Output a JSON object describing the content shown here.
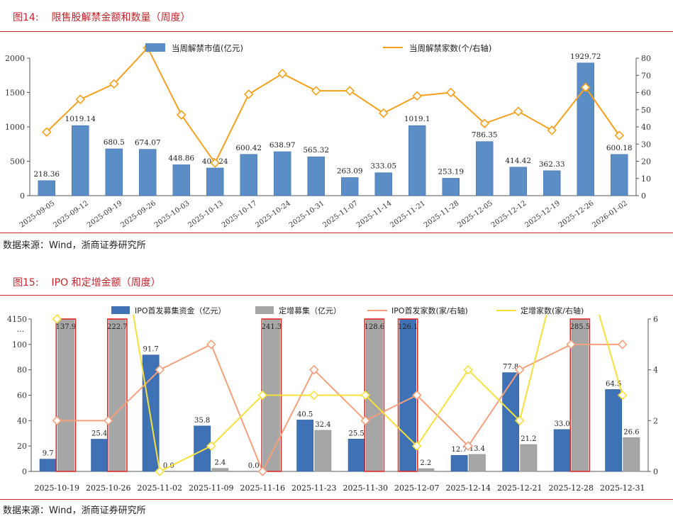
{
  "figure14": {
    "number": "图14:",
    "title": "限售股解禁金额和数量（周度）",
    "source": "数据来源：Wind，浙商证券研究所"
  },
  "figure15": {
    "number": "图15:",
    "title": "IPO 和定增金额（周度）",
    "source": "数据来源：Wind，浙商证券研究所"
  },
  "chart_data": [
    {
      "id": "fig14",
      "type": "bar+line",
      "categories": [
        "2025-09-05",
        "2025-09-12",
        "2025-09-19",
        "2025-09-26",
        "2025-10-03",
        "2025-10-13",
        "2025-10-17",
        "2025-10-24",
        "2025-10-31",
        "2025-11-07",
        "2025-11-14",
        "2025-11-21",
        "2025-11-28",
        "2025-12-05",
        "2025-12-12",
        "2025-12-19",
        "2025-12-26",
        "2026-01-02"
      ],
      "series": [
        {
          "name": "当周解禁市值(亿元)",
          "type": "bar",
          "axis": "left",
          "color": "#5b8ec7",
          "values": [
            218.36,
            1019.14,
            680.5,
            674.07,
            448.86,
            402.24,
            600.42,
            638.97,
            565.32,
            263.09,
            333.05,
            1019.1,
            253.19,
            786.35,
            414.42,
            362.33,
            1929.72,
            600.18
          ],
          "labels": [
            "218.36",
            "1019.14",
            "680.5",
            "674.07",
            "448.86",
            "402.24",
            "600.42",
            "638.97",
            "565.32",
            "263.09",
            "333.05",
            "1019.1",
            "253.19",
            "786.35",
            "414.42",
            "362.33",
            "1929.72",
            "600.18"
          ]
        },
        {
          "name": "当周解禁家数(个/右轴)",
          "type": "line",
          "axis": "right",
          "color": "#f5a11d",
          "values": [
            37,
            56,
            65,
            86,
            47,
            19,
            59,
            71,
            61,
            61,
            48,
            58,
            60,
            42,
            49,
            38,
            63,
            35
          ]
        }
      ],
      "ylim_left": [
        0,
        2000
      ],
      "yticks_left": [
        "0",
        "500",
        "1000",
        "1500",
        "2000"
      ],
      "ylim_right": [
        0,
        80
      ],
      "yticks_right": [
        "0",
        "10",
        "20",
        "30",
        "40",
        "50",
        "60",
        "70",
        "80"
      ]
    },
    {
      "id": "fig15",
      "type": "bar+line",
      "categories": [
        "2025-10-19",
        "2025-10-26",
        "2025-11-02",
        "2025-11-09",
        "2025-11-16",
        "2025-11-23",
        "2025-11-30",
        "2025-12-07",
        "2025-12-14",
        "2025-12-21",
        "2025-12-28",
        "2025-12-31"
      ],
      "series": [
        {
          "name": "IPO首发募集资金（亿元）",
          "type": "bar",
          "axis": "left",
          "color": "#3f72b5",
          "values": [
            9.7,
            25.4,
            91.7,
            35.8,
            0.0,
            40.5,
            25.5,
            126.1,
            12.7,
            77.8,
            33.0,
            64.5
          ],
          "labels": [
            "9.7",
            "25.4",
            "91.7",
            "35.8",
            "0.0",
            "40.5",
            "25.5",
            "126.1",
            "12.7",
            "77.8",
            "33.0",
            "64.5"
          ]
        },
        {
          "name": "定增募集（亿元）",
          "type": "bar",
          "axis": "left",
          "color": "#a6a6a6",
          "values": [
            137.9,
            222.7,
            0.0,
            2.4,
            241.3,
            32.4,
            128.6,
            2.2,
            13.4,
            21.2,
            285.5,
            26.6
          ],
          "labels": [
            "137.9",
            "222.7",
            "0.0",
            "2.4",
            "241.3",
            "32.4",
            "128.6",
            "2.2",
            "13.4",
            "21.2",
            "285.5",
            "26.6"
          ]
        },
        {
          "name": "IPO首发家数(家/右轴)",
          "type": "line",
          "axis": "right",
          "color": "#f4a07c",
          "values": [
            2,
            2,
            4,
            5,
            0,
            4,
            2,
            3,
            1,
            4,
            5,
            5
          ]
        },
        {
          "name": "定增家数(家/右轴)",
          "type": "line",
          "axis": "right",
          "color": "#f7e03c",
          "values": [
            6,
            12,
            0,
            1,
            3,
            3,
            3,
            1,
            4,
            2,
            10,
            3
          ]
        }
      ],
      "ylim_left": [
        0,
        120
      ],
      "axis_break": {
        "top_label": "4150",
        "break_label": "..."
      },
      "yticks_left": [
        "0",
        "20",
        "40",
        "60",
        "80",
        "100"
      ],
      "ylim_right": [
        0,
        6
      ],
      "yticks_right": [
        "0",
        "2",
        "4",
        "6"
      ],
      "truncated_bar_note": "bars exceeding 120 are clipped and outlined in red"
    }
  ]
}
